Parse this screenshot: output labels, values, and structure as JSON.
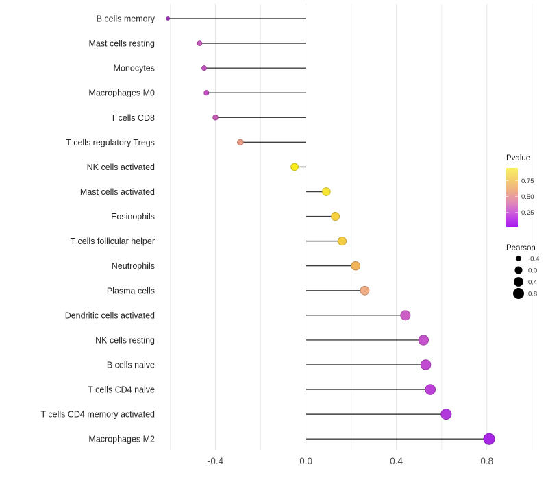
{
  "chart_data": {
    "type": "scatter",
    "subtype": "lollipop",
    "title": "",
    "xlabel": "",
    "ylabel": "",
    "grid": "vertical-only",
    "xlim": [
      -0.65,
      1.04
    ],
    "x_axis": {
      "major_ticks": [
        -0.4,
        0.0,
        0.4,
        0.8
      ],
      "major_tick_labels": [
        "-0.4",
        "0.0",
        "0.4",
        "0.8"
      ],
      "minor_gridlines": [
        -0.6,
        -0.2,
        0.2,
        0.6,
        1.0
      ]
    },
    "stem_origin": 0.0,
    "points": [
      {
        "name": "B cells memory",
        "pearson": -0.61,
        "pvalue_est": 0.1,
        "color": "#9d36b6"
      },
      {
        "name": "Mast cells resting",
        "pearson": -0.47,
        "pvalue_est": 0.33,
        "color": "#c456ba"
      },
      {
        "name": "Monocytes",
        "pearson": -0.45,
        "pvalue_est": 0.31,
        "color": "#c350be"
      },
      {
        "name": "Macrophages M0",
        "pearson": -0.44,
        "pvalue_est": 0.3,
        "color": "#c24ec0"
      },
      {
        "name": "T cells CD8",
        "pearson": -0.4,
        "pvalue_est": 0.35,
        "color": "#c75ab4"
      },
      {
        "name": "T cells regulatory  Tregs",
        "pearson": -0.29,
        "pvalue_est": 0.52,
        "color": "#e89b85"
      },
      {
        "name": "NK cells activated",
        "pearson": -0.05,
        "pvalue_est": 0.88,
        "color": "#f7eb1d"
      },
      {
        "name": "Mast cells activated",
        "pearson": 0.09,
        "pvalue_est": 0.85,
        "color": "#f8e636"
      },
      {
        "name": "Eosinophils",
        "pearson": 0.13,
        "pvalue_est": 0.78,
        "color": "#f6d23c"
      },
      {
        "name": "T cells follicular helper",
        "pearson": 0.16,
        "pvalue_est": 0.75,
        "color": "#f5cc46"
      },
      {
        "name": "Neutrophils",
        "pearson": 0.22,
        "pvalue_est": 0.65,
        "color": "#f2b35c"
      },
      {
        "name": "Plasma cells",
        "pearson": 0.26,
        "pvalue_est": 0.58,
        "color": "#eead84"
      },
      {
        "name": "Dendritic cells activated",
        "pearson": 0.44,
        "pvalue_est": 0.38,
        "color": "#cb60c4"
      },
      {
        "name": "NK cells resting",
        "pearson": 0.52,
        "pvalue_est": 0.28,
        "color": "#c553cc"
      },
      {
        "name": "B cells naive",
        "pearson": 0.53,
        "pvalue_est": 0.26,
        "color": "#c14cd1"
      },
      {
        "name": "T cells CD4 naive",
        "pearson": 0.55,
        "pvalue_est": 0.22,
        "color": "#bc41d6"
      },
      {
        "name": "T cells CD4 memory activated",
        "pearson": 0.62,
        "pvalue_est": 0.16,
        "color": "#b338dc"
      },
      {
        "name": "Macrophages M2",
        "pearson": 0.81,
        "pvalue_est": 0.05,
        "color": "#a727e4"
      }
    ],
    "legend_pvalue": {
      "title": "Pvalue",
      "tick_labels": [
        "0.75",
        "0.50",
        "0.25"
      ],
      "tick_values": [
        0.75,
        0.5,
        0.25
      ],
      "bar_range": [
        0.95,
        0.02
      ],
      "gradient_stops": [
        {
          "offset": 0.0,
          "color": "#faf163"
        },
        {
          "offset": 0.2,
          "color": "#f5cf6d"
        },
        {
          "offset": 0.42,
          "color": "#eca98d"
        },
        {
          "offset": 0.58,
          "color": "#e18ab6"
        },
        {
          "offset": 0.74,
          "color": "#cf63d7"
        },
        {
          "offset": 0.88,
          "color": "#bb38ea"
        },
        {
          "offset": 1.0,
          "color": "#a816f0"
        }
      ],
      "position": "right"
    },
    "legend_pearson": {
      "title": "Pearson",
      "entries": [
        {
          "label": "-0.4",
          "value": -0.4
        },
        {
          "label": "0.0",
          "value": 0.0
        },
        {
          "label": "0.4",
          "value": 0.4
        },
        {
          "label": "0.8",
          "value": 0.8
        }
      ],
      "dot_color": "#000000",
      "position": "right"
    },
    "style_colors": {
      "stem": "#3f3f3f",
      "gridline_major": "#e4e4e4",
      "gridline_minor": "#efefef",
      "axis_tick_text": "#4d4d4d",
      "category_text": "#262626",
      "legend_title_text": "#1a1a1a",
      "legend_tick_text": "#333333",
      "background": "#ffffff"
    }
  }
}
